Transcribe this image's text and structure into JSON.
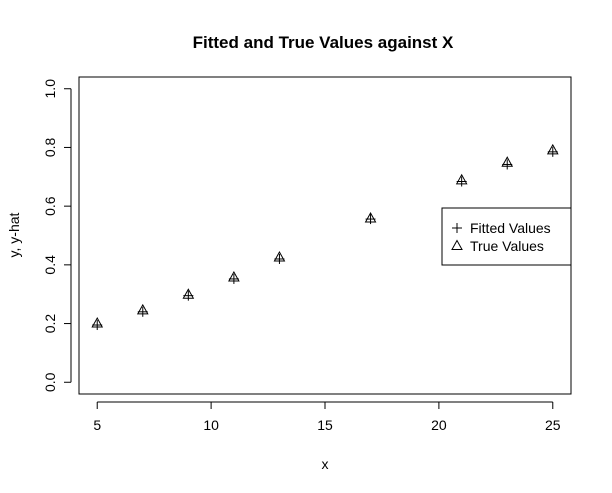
{
  "chart_data": {
    "type": "scatter",
    "title": "Fitted and True Values against X",
    "xlabel": "x",
    "ylabel": "y, y-hat",
    "xlim": [
      4.2,
      25.8
    ],
    "ylim": [
      -0.04,
      1.04
    ],
    "x_ticks": [
      5,
      10,
      15,
      20,
      25
    ],
    "y_ticks": [
      0.0,
      0.2,
      0.4,
      0.6,
      0.8,
      1.0
    ],
    "x_tick_labels": [
      "5",
      "10",
      "15",
      "20",
      "25"
    ],
    "y_tick_labels": [
      "0.0",
      "0.2",
      "0.4",
      "0.6",
      "0.8",
      "1.0"
    ],
    "grid": false,
    "legend_position": "right",
    "x": [
      5,
      7,
      9,
      11,
      13,
      17,
      21,
      23,
      25
    ],
    "series": [
      {
        "name": "Fitted Values",
        "marker": "plus",
        "values": [
          0.195,
          0.24,
          0.295,
          0.352,
          0.42,
          0.556,
          0.684,
          0.742,
          0.785
        ]
      },
      {
        "name": "True Values",
        "marker": "triangle",
        "values": [
          0.2,
          0.245,
          0.298,
          0.357,
          0.425,
          0.558,
          0.688,
          0.748,
          0.79
        ]
      }
    ],
    "colors": {
      "marks": "#000000",
      "frame": "#000000",
      "background": "#ffffff"
    }
  }
}
